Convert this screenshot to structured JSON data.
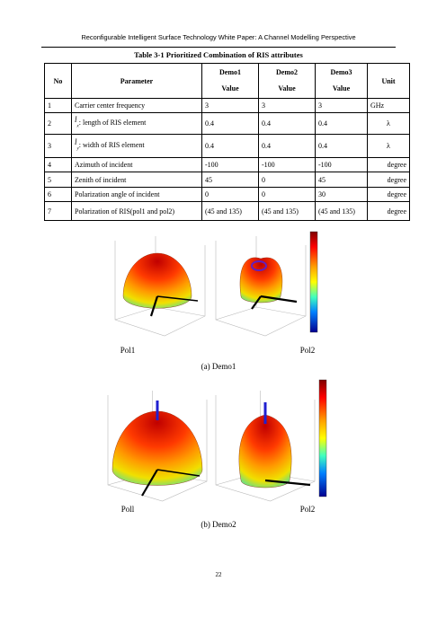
{
  "header": {
    "running_title": "Reconfigurable Intelligent Surface Technology White Paper: A Channel Modelling Perspective"
  },
  "table": {
    "title": "Table 3-1 Prioritized Combination of RIS attributes",
    "columns": [
      "No",
      "Parameter",
      [
        "Demo1",
        "Value"
      ],
      [
        "Demo2",
        "Value"
      ],
      [
        "Demo3",
        "Value"
      ],
      "Unit"
    ],
    "rows": [
      [
        "1",
        "Carrier center frequency",
        "3",
        "3",
        "3",
        "GHz"
      ],
      [
        "2",
        {
          "symbol": "l",
          "sub": "x",
          "text": ": length of RIS element"
        },
        "0.4",
        "0.4",
        "0.4",
        "λ"
      ],
      [
        "3",
        {
          "symbol": "l",
          "sub": "y",
          "text": ": width of RIS element"
        },
        "0.4",
        "0.4",
        "0.4",
        "λ"
      ],
      [
        "4",
        "Azimuth of incident",
        "-100",
        "-100",
        "-100",
        "degree"
      ],
      [
        "5",
        "Zenith of incident",
        "45",
        "0",
        "45",
        "degree"
      ],
      [
        "6",
        "Polarization angle of incident",
        "0",
        "0",
        "30",
        "degree"
      ],
      [
        "7",
        "Polarization of RIS(pol1 and pol2)",
        "(45 and 135)",
        "(45 and 135)",
        "(45 and 135)",
        "degree"
      ]
    ]
  },
  "figures": [
    {
      "labels": [
        "Pol1",
        "Pol2"
      ],
      "caption": "(a) Demo1"
    },
    {
      "labels": [
        "Poll",
        "Pol2"
      ],
      "caption": "(b) Demo2"
    }
  ],
  "page_number": "22"
}
